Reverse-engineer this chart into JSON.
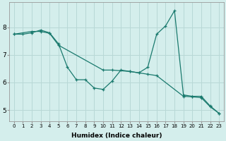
{
  "xlabel": "Humidex (Indice chaleur)",
  "background_color": "#d4eeec",
  "grid_color": "#b8d8d6",
  "line_color": "#1a7a6e",
  "xlim": [
    -0.5,
    23.5
  ],
  "ylim": [
    4.6,
    8.9
  ],
  "yticks": [
    5,
    6,
    7,
    8
  ],
  "xticks": [
    0,
    1,
    2,
    3,
    4,
    5,
    6,
    7,
    8,
    9,
    10,
    11,
    12,
    13,
    14,
    15,
    16,
    17,
    18,
    19,
    20,
    21,
    22,
    23
  ],
  "series1_wavy": {
    "x": [
      0,
      1,
      2,
      3,
      4,
      5,
      6,
      7,
      8,
      9,
      10,
      11,
      12,
      13,
      14,
      15,
      16,
      17,
      18,
      19,
      20,
      21,
      22,
      23
    ],
    "y": [
      7.75,
      7.75,
      7.8,
      7.9,
      7.8,
      7.4,
      6.55,
      6.1,
      6.1,
      5.8,
      5.75,
      6.05,
      6.45,
      6.4,
      6.35,
      6.55,
      7.75,
      8.05,
      8.6,
      5.55,
      5.5,
      5.5,
      5.15,
      4.88
    ]
  },
  "series2_straight": {
    "x": [
      0,
      2,
      3,
      4,
      5,
      10,
      11,
      13,
      14,
      15,
      16,
      19,
      20,
      21,
      22,
      23
    ],
    "y": [
      7.75,
      7.85,
      7.85,
      7.78,
      7.35,
      6.45,
      6.45,
      6.4,
      6.35,
      6.3,
      6.25,
      5.5,
      5.48,
      5.45,
      5.12,
      4.88
    ]
  }
}
